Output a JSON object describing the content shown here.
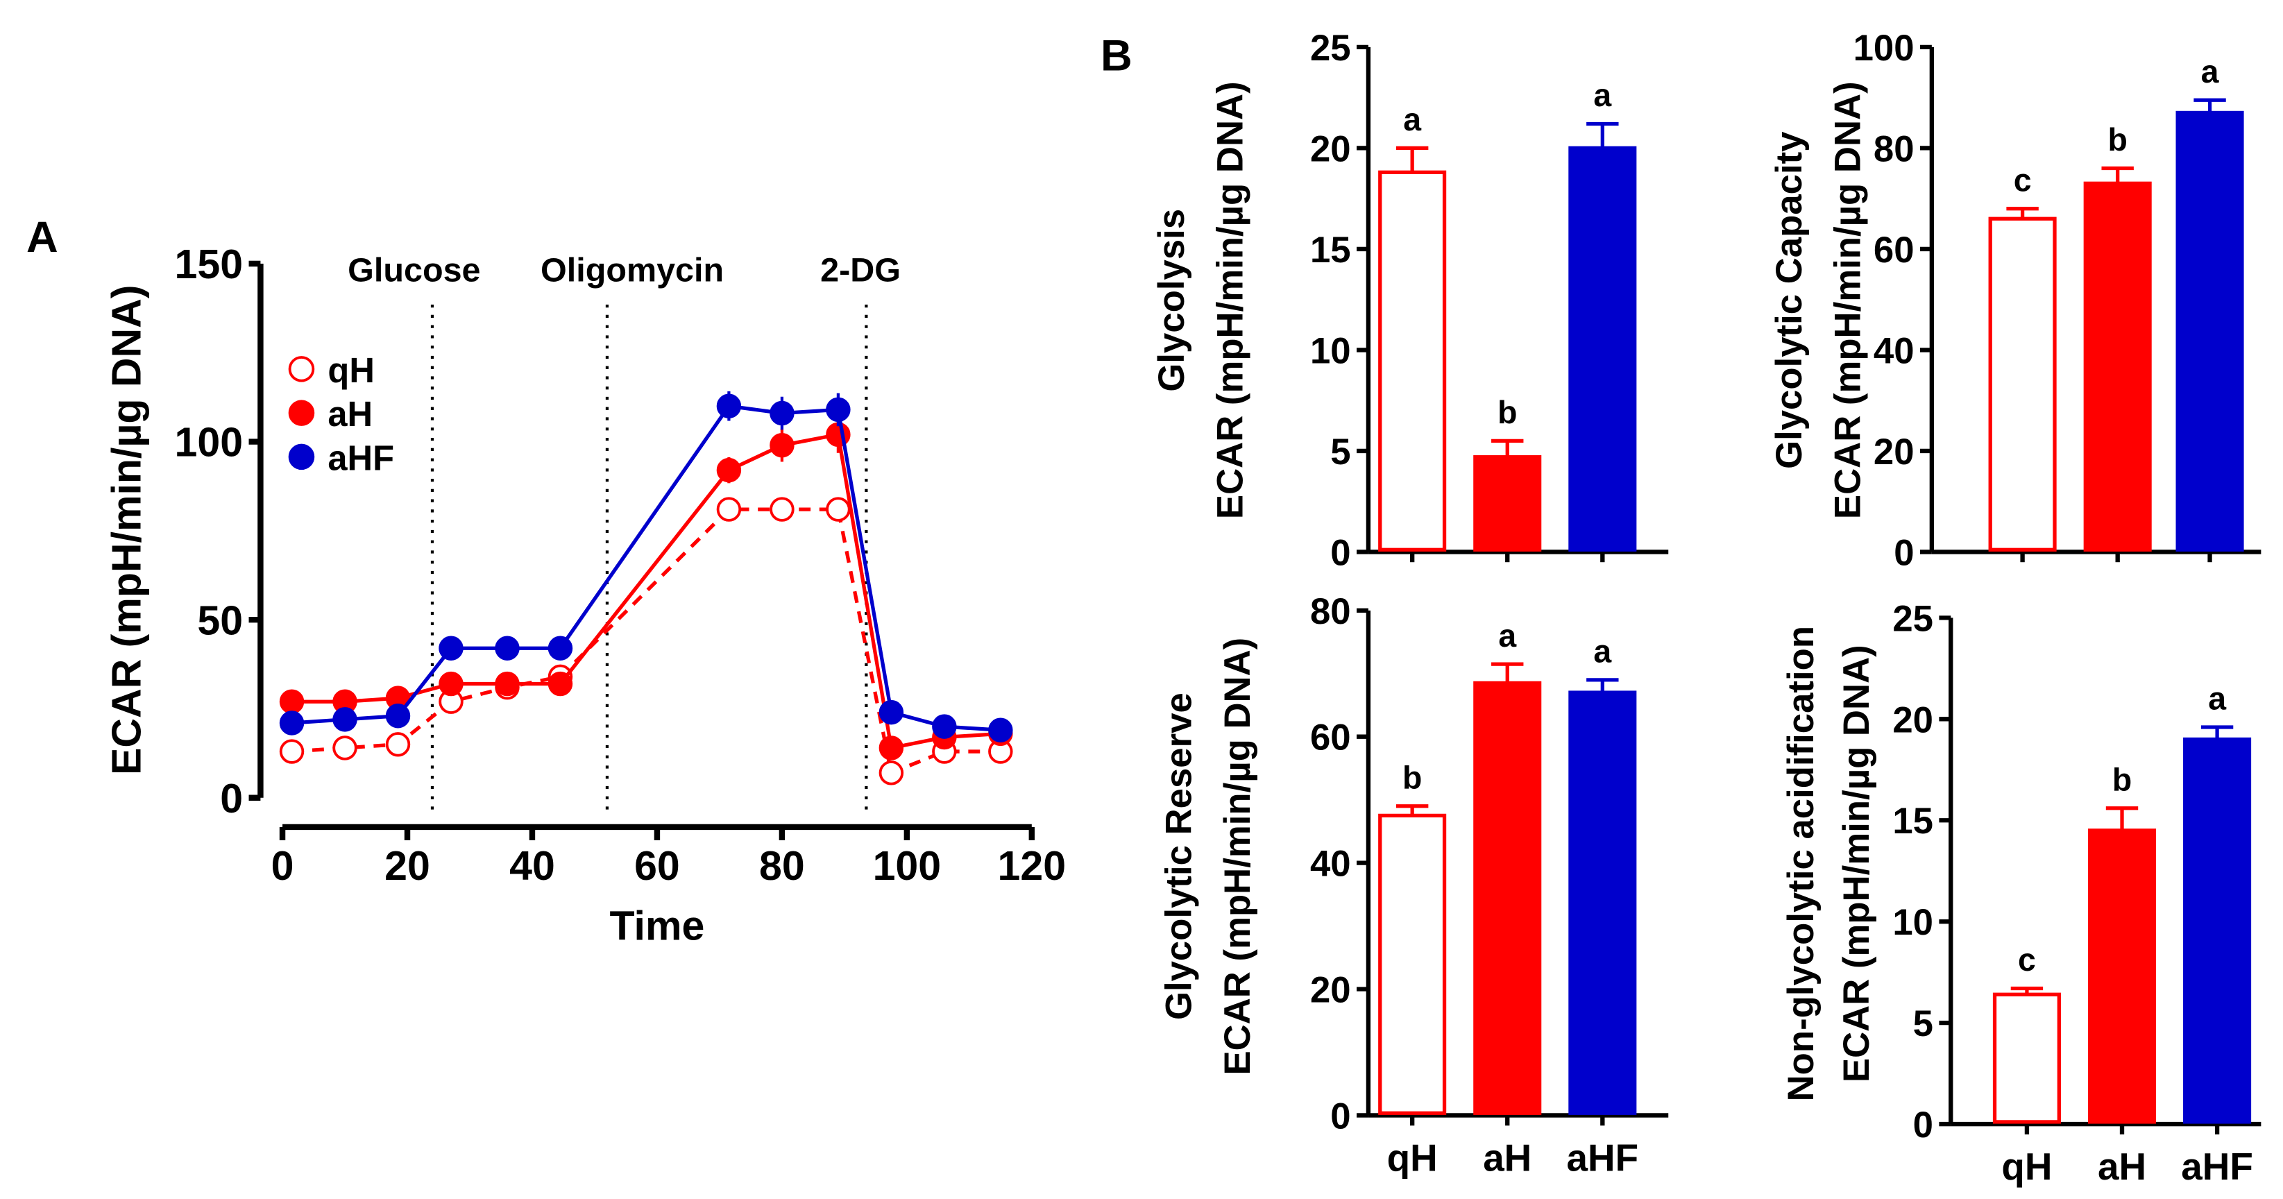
{
  "chart_data": [
    {
      "panel": "A",
      "type": "line",
      "xlabel": "Time",
      "ylabel": "ECAR (mpH/min/µg DNA)",
      "xlim": [
        0,
        120
      ],
      "ylim": [
        0,
        150
      ],
      "xticks": [
        "0",
        "20",
        "40",
        "60",
        "80",
        "100",
        "120"
      ],
      "yticks": [
        "0",
        "50",
        "100",
        "150"
      ],
      "injections": [
        {
          "label": "Glucose",
          "x": 24
        },
        {
          "label": "Oligomycin",
          "x": 52
        },
        {
          "label": "2-DG",
          "x": 93.5
        }
      ],
      "legend_position": "top-left",
      "x": [
        1.5,
        10,
        18.5,
        27,
        36,
        44.5,
        71.5,
        80,
        89,
        97.5,
        106,
        115
      ],
      "series": [
        {
          "name": "qH",
          "color": "#ff0000",
          "style": "open-dashed",
          "values": [
            13,
            14,
            15,
            27,
            31,
            34,
            81,
            81,
            81,
            7,
            13,
            13
          ],
          "errors": [
            1,
            1,
            1,
            1.5,
            1,
            1.5,
            1.5,
            1.5,
            1.5,
            1,
            1,
            1
          ]
        },
        {
          "name": "aH",
          "color": "#ff0000",
          "style": "filled-solid",
          "values": [
            27,
            27,
            28,
            32,
            32,
            32,
            92,
            99,
            102,
            14,
            17,
            18
          ],
          "errors": [
            1,
            1,
            1,
            1.5,
            1.5,
            1.5,
            2,
            3,
            3.5,
            1,
            1,
            1
          ]
        },
        {
          "name": "aHF",
          "color": "#0000cc",
          "style": "filled-solid",
          "values": [
            21,
            22,
            23,
            42,
            42,
            42,
            110,
            108,
            109,
            24,
            20,
            19
          ],
          "errors": [
            1,
            1,
            1,
            1,
            1,
            1,
            2.5,
            3,
            3,
            1,
            1,
            1
          ]
        }
      ]
    },
    {
      "panel": "B",
      "type": "bar",
      "title": "Glycolysis",
      "ylabel": "ECAR (mpH/min/µg DNA)",
      "ylim": [
        0,
        25
      ],
      "yticks": [
        "0",
        "5",
        "10",
        "15",
        "20",
        "25"
      ],
      "categories": [
        "qH",
        "aH",
        "aHF"
      ],
      "values": [
        18.8,
        4.7,
        20
      ],
      "errors": [
        1.2,
        0.8,
        1.2
      ],
      "letters": [
        "a",
        "b",
        "a"
      ]
    },
    {
      "type": "bar",
      "title": "Glycolytic Capacity",
      "ylabel": "ECAR (mpH/min/µg DNA)",
      "ylim": [
        0,
        100
      ],
      "yticks": [
        "0",
        "20",
        "40",
        "60",
        "80",
        "100"
      ],
      "categories": [
        "qH",
        "aH",
        "aHF"
      ],
      "values": [
        66,
        73,
        87
      ],
      "errors": [
        2,
        3,
        2.5
      ],
      "letters": [
        "c",
        "b",
        "a"
      ]
    },
    {
      "type": "bar",
      "title": "Glycolytic Reserve",
      "ylabel": "ECAR (mpH/min/µg DNA)",
      "ylim": [
        0,
        80
      ],
      "yticks": [
        "0",
        "20",
        "40",
        "60",
        "80"
      ],
      "categories": [
        "qH",
        "aH",
        "aHF"
      ],
      "values": [
        47.5,
        68.5,
        67
      ],
      "errors": [
        1.5,
        3,
        2
      ],
      "letters": [
        "b",
        "a",
        "a"
      ]
    },
    {
      "type": "bar",
      "title": "Non-glycolytic acidification",
      "ylabel": "ECAR (mpH/min/µg DNA)",
      "ylim": [
        0,
        25
      ],
      "yticks": [
        "0",
        "5",
        "10",
        "15",
        "20",
        "25"
      ],
      "categories": [
        "qH",
        "aH",
        "aHF"
      ],
      "values": [
        6.4,
        14.5,
        19
      ],
      "errors": [
        0.3,
        1.1,
        0.6
      ],
      "letters": [
        "c",
        "b",
        "a"
      ]
    }
  ],
  "bar_colors": {
    "qH": "#ff0000",
    "aH": "#ff0000",
    "aHF": "#0000cc"
  },
  "panel_labels": [
    "A",
    "B"
  ]
}
